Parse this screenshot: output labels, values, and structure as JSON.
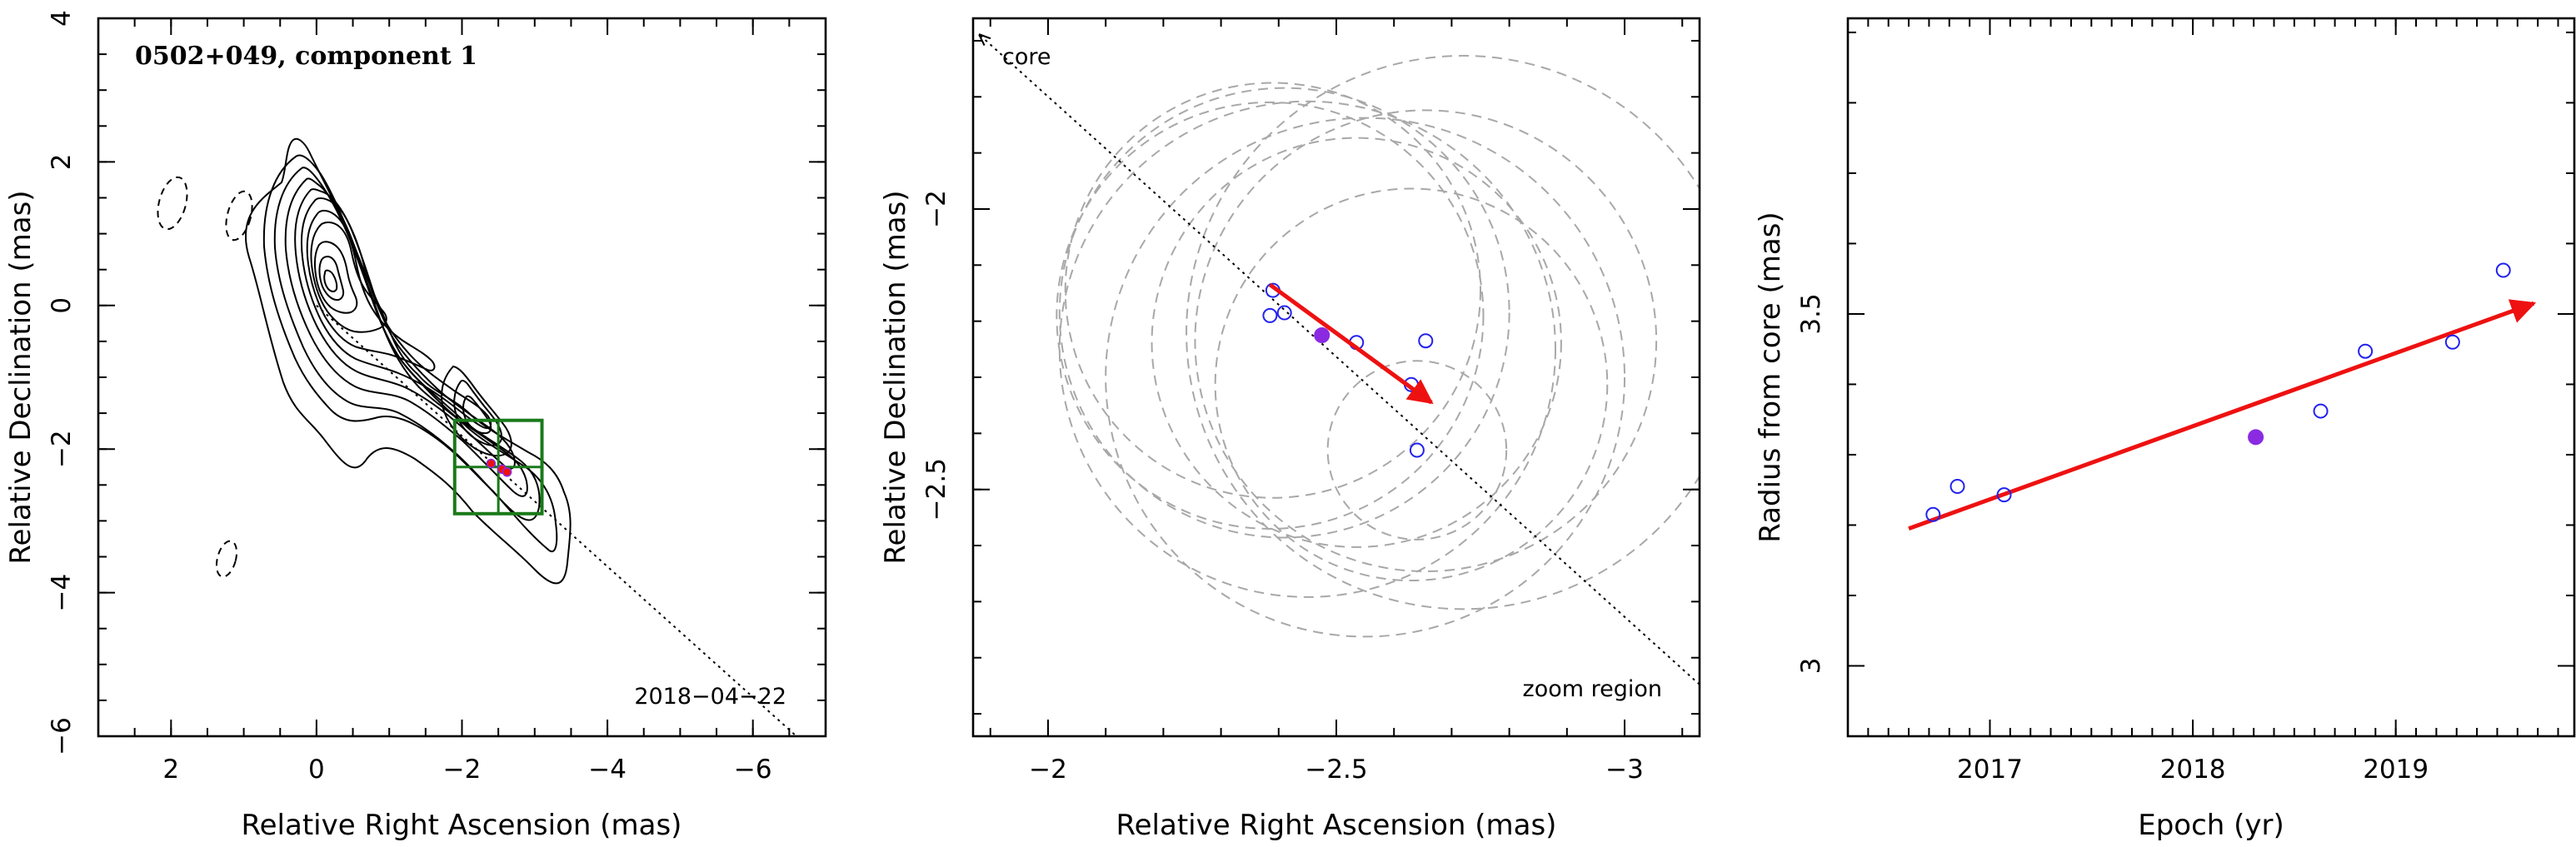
{
  "chart_data": [
    {
      "type": "contour",
      "title": "0502+049, component 1",
      "date": "2018−04−22",
      "xlabel": "Relative Right Ascension (mas)",
      "ylabel": "Relative Declination (mas)",
      "xlim": [
        3,
        -7
      ],
      "ylim": [
        -6,
        4
      ],
      "xticks": [
        2,
        0,
        -2,
        -4,
        -6
      ],
      "xtick_labels": [
        "2",
        "0",
        "−2",
        "−4",
        "−6"
      ],
      "yticks": [
        4,
        2,
        0,
        -2,
        -4,
        -6
      ],
      "ytick_labels": [
        "4",
        "2",
        "0",
        "−2",
        "−4",
        "−6"
      ],
      "core": [
        0.0,
        0.15
      ],
      "component_position": [
        -2.45,
        -2.23
      ],
      "component_epochs": [
        {
          "x": -2.4,
          "y": -2.2
        },
        {
          "x": -2.55,
          "y": -2.28
        },
        {
          "x": -2.62,
          "y": -2.32
        }
      ],
      "jet_direction_line": {
        "from": [
          0.0,
          0.0
        ],
        "to": [
          -6.6,
          -6.0
        ]
      },
      "zoom_box": {
        "x": [
          -1.9,
          -3.1
        ],
        "y": [
          -1.6,
          -2.9
        ]
      }
    },
    {
      "type": "scatter",
      "xlabel": "Relative Right Ascension (mas)",
      "ylabel": "Relative Declination (mas)",
      "xlim": [
        -1.87,
        -3.13
      ],
      "ylim": [
        -2.94,
        -1.66
      ],
      "xticks": [
        -2,
        -2.5,
        -3
      ],
      "xtick_labels": [
        "−2",
        "−2.5",
        "−3"
      ],
      "yticks": [
        -2,
        -2.5
      ],
      "ytick_labels": [
        "−2",
        "−2.5"
      ],
      "labels": {
        "core": "core",
        "zoom": "zoom region"
      },
      "points": [
        {
          "x": -2.39,
          "y": -2.145
        },
        {
          "x": -2.385,
          "y": -2.19
        },
        {
          "x": -2.41,
          "y": -2.185
        },
        {
          "x": -2.535,
          "y": -2.238
        },
        {
          "x": -2.63,
          "y": -2.313
        },
        {
          "x": -2.655,
          "y": -2.235
        },
        {
          "x": -2.64,
          "y": -2.43
        }
      ],
      "mean_point": {
        "x": -2.475,
        "y": -2.225
      },
      "motion_vector": {
        "from": [
          -2.385,
          -2.135
        ],
        "to": [
          -2.665,
          -2.345
        ]
      },
      "error_circles": [
        {
          "x": -2.64,
          "y": -2.43,
          "r": 0.155
        },
        {
          "x": -2.39,
          "y": -2.145,
          "r": 0.36
        },
        {
          "x": -2.385,
          "y": -2.19,
          "r": 0.37
        },
        {
          "x": -2.41,
          "y": -2.185,
          "r": 0.39
        },
        {
          "x": -2.535,
          "y": -2.238,
          "r": 0.355
        },
        {
          "x": -2.63,
          "y": -2.313,
          "r": 0.34
        },
        {
          "x": -2.655,
          "y": -2.235,
          "r": 0.4
        },
        {
          "x": -2.72,
          "y": -2.22,
          "r": 0.48
        },
        {
          "x": -2.45,
          "y": -2.25,
          "r": 0.43
        },
        {
          "x": -2.55,
          "y": -2.3,
          "r": 0.45
        }
      ]
    },
    {
      "type": "scatter",
      "xlabel": "Epoch (yr)",
      "ylabel": "Radius from core (mas)",
      "xlim": [
        2016.3,
        2019.88
      ],
      "ylim": [
        2.9,
        3.92
      ],
      "xticks": [
        2017,
        2018,
        2019
      ],
      "xtick_labels": [
        "2017",
        "2018",
        "2019"
      ],
      "yticks": [
        3,
        3.5
      ],
      "ytick_labels": [
        "3",
        "3.5"
      ],
      "points": [
        {
          "x": 2016.72,
          "y": 3.215
        },
        {
          "x": 2016.84,
          "y": 3.255
        },
        {
          "x": 2017.07,
          "y": 3.243
        },
        {
          "x": 2018.63,
          "y": 3.362
        },
        {
          "x": 2018.85,
          "y": 3.447
        },
        {
          "x": 2019.28,
          "y": 3.46
        },
        {
          "x": 2019.53,
          "y": 3.562
        }
      ],
      "highlighted_point": {
        "x": 2018.31,
        "y": 3.325
      },
      "fit_line": {
        "from": [
          2016.6,
          3.195
        ],
        "to": [
          2019.68,
          3.515
        ]
      }
    }
  ],
  "colors": {
    "vector": "#ee1111",
    "open_points": "#2222ee",
    "highlight": "#8a2be2",
    "zoom_box": "#1a7a1a",
    "zoom_circles": "#a8a8a8"
  }
}
